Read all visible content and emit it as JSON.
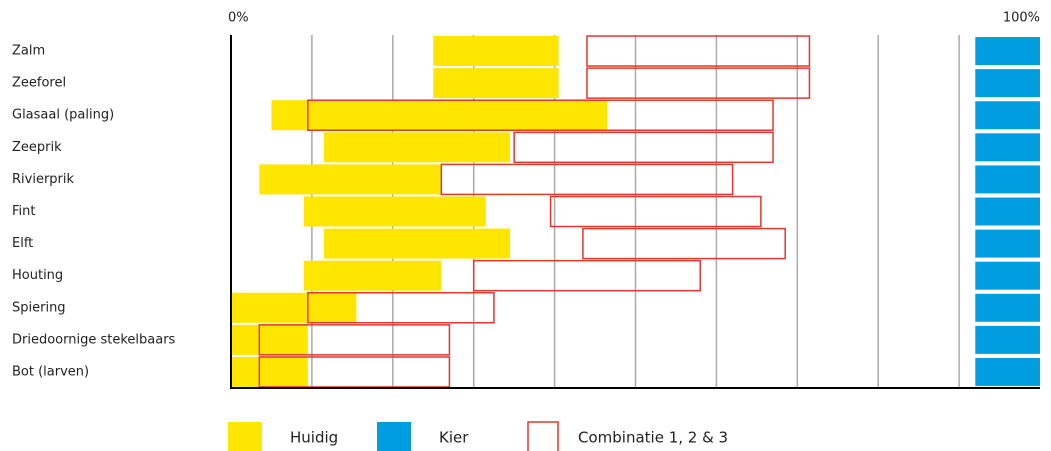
{
  "chart_data": {
    "type": "range_bar",
    "orientation": "horizontal",
    "categories": [
      "Zalm",
      "Zeeforel",
      "Glasaal (paling)",
      "Zeeprik",
      "Rivierprik",
      "Fint",
      "Elft",
      "Houting",
      "Spiering",
      "Driedoornige stekelbaars",
      "Bot (larven)"
    ],
    "series": [
      {
        "name": "Huidig",
        "color": "#ffe600",
        "style": "fill",
        "low": [
          25,
          25,
          5,
          11.5,
          3.5,
          9,
          11.5,
          9,
          0,
          0,
          0
        ],
        "high": [
          40.5,
          40.5,
          46.5,
          34.5,
          26,
          31.5,
          34.5,
          26,
          15.5,
          9.5,
          9.5
        ]
      },
      {
        "name": "Kier",
        "color": "#009ee0",
        "style": "fill",
        "low": [
          92,
          92,
          92,
          92,
          92,
          92,
          92,
          92,
          92,
          92,
          92
        ],
        "high": [
          100,
          100,
          100,
          100,
          100,
          100,
          100,
          100,
          100,
          100,
          100
        ]
      },
      {
        "name": "Combinatie 1, 2 & 3",
        "color": "#e0382f",
        "style": "outline",
        "low": [
          44,
          44,
          9.5,
          35,
          26,
          39.5,
          43.5,
          30,
          9.5,
          3.5,
          3.5
        ],
        "high": [
          71.5,
          71.5,
          67,
          67,
          62,
          65.5,
          68.5,
          58,
          32.5,
          27,
          27
        ]
      }
    ],
    "xlim": [
      0,
      100
    ],
    "xticks": [
      {
        "value": 0,
        "label": "0%"
      },
      {
        "value": 10,
        "label": null
      },
      {
        "value": 20,
        "label": null
      },
      {
        "value": 30,
        "label": null
      },
      {
        "value": 40,
        "label": null
      },
      {
        "value": 50,
        "label": null
      },
      {
        "value": 60,
        "label": null
      },
      {
        "value": 70,
        "label": null
      },
      {
        "value": 80,
        "label": null
      },
      {
        "value": 90,
        "label": null
      },
      {
        "value": 100,
        "label": "100%"
      }
    ],
    "grid": true,
    "legend": "bottom"
  }
}
